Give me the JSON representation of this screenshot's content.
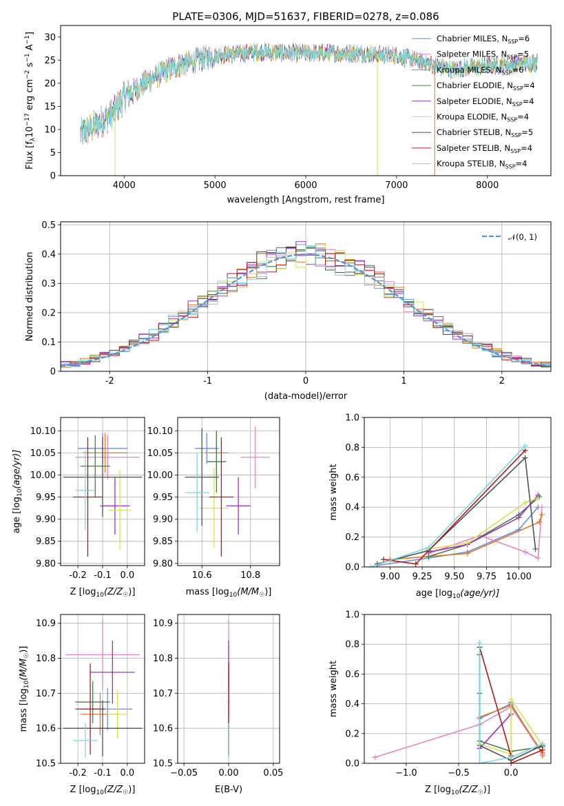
{
  "figure": {
    "title": "PLATE=0306, MJD=51637, FIBERID=0278, z=0.086"
  },
  "colors": {
    "Chabrier MILES": "#6a8ee0",
    "Salpeter MILES": "#e088c2",
    "Kroupa MILES": "#e07a22",
    "Chabrier ELODIE": "#4a7a4a",
    "Salpeter ELODIE": "#9a30b8",
    "Kroupa ELODIE": "#d2e25a",
    "Chabrier STELIB": "#505050",
    "Salpeter STELIB": "#b01818",
    "Kroupa STELIB": "#7ad6e0",
    "gaussian": "#5b8fd8"
  },
  "legend": {
    "items": [
      {
        "name": "Chabrier MILES",
        "n": "6"
      },
      {
        "name": "Salpeter MILES",
        "n": "5"
      },
      {
        "name": "Kroupa MILES",
        "n": "6"
      },
      {
        "name": "Chabrier ELODIE",
        "n": "4"
      },
      {
        "name": "Salpeter ELODIE",
        "n": "4"
      },
      {
        "name": "Kroupa ELODIE",
        "n": "4"
      },
      {
        "name": "Chabrier STELIB",
        "n": "5"
      },
      {
        "name": "Salpeter STELIB",
        "n": "4"
      },
      {
        "name": "Kroupa STELIB",
        "n": "4"
      }
    ],
    "nssp_prefix": "N",
    "nssp_sub": "SSP",
    "placement": "top-right"
  },
  "chart_data": [
    {
      "id": "spectrum",
      "type": "line",
      "xlabel": "wavelength [Angstrom, rest frame]",
      "ylabel_main": "Flux [f",
      "ylabel_sub": "λ",
      "ylabel_rest": "10",
      "ylabel_sup1": "−17",
      "ylabel_mid": " erg cm",
      "ylabel_sup2": "−2",
      "ylabel_mid2": " s",
      "ylabel_sup3": "−1",
      "ylabel_mid3": " A",
      "ylabel_sup4": "−1",
      "ylabel_end": "]",
      "xlim": [
        3300,
        8700
      ],
      "ylim": [
        0,
        32.5
      ],
      "xticks": [
        4000,
        5000,
        6000,
        7000,
        8000
      ],
      "yticks": [
        0,
        5,
        10,
        15,
        20,
        25,
        30
      ],
      "continuum": [
        [
          3520,
          9
        ],
        [
          3700,
          11
        ],
        [
          3900,
          14
        ],
        [
          4000,
          17
        ],
        [
          4300,
          21
        ],
        [
          4600,
          24
        ],
        [
          5000,
          26
        ],
        [
          5500,
          26.8
        ],
        [
          6000,
          26.5
        ],
        [
          6500,
          26.5
        ],
        [
          7000,
          26
        ],
        [
          7300,
          24.5
        ],
        [
          7600,
          23
        ],
        [
          8000,
          23.8
        ],
        [
          8400,
          24.2
        ],
        [
          8550,
          24.5
        ]
      ],
      "dropouts": [
        {
          "series": "Kroupa ELODIE",
          "x": 3900
        },
        {
          "series": "Kroupa ELODIE",
          "x": 6790
        },
        {
          "series": "Kroupa MILES",
          "x": 7420
        }
      ]
    },
    {
      "id": "residuals",
      "type": "histogram",
      "xlabel": "(data-model)/error",
      "ylabel": "Normed distribution",
      "xlim": [
        -2.5,
        2.5
      ],
      "ylim": [
        0,
        0.51
      ],
      "xticks": [
        -2,
        -1,
        0,
        1,
        2
      ],
      "yticks": [
        0,
        0.1,
        0.2,
        0.3,
        0.4,
        0.5
      ],
      "bin_width": 0.1,
      "gaussian_label": "𝒩(0, 1)",
      "gaussian": {
        "mean": 0,
        "sigma": 1
      },
      "grid": true
    },
    {
      "id": "age-vs-z",
      "type": "errorbar",
      "xlabel_main": "Z [log",
      "xlabel_sub": "10",
      "xlabel_end": "(Z/Z",
      "xlabel_sun": "☉",
      "xlabel_close": ")]",
      "ylabel_main": "age  [log",
      "ylabel_sub": "10",
      "ylabel_end": "(age/yr)]",
      "xlim": [
        -0.27,
        0.07
      ],
      "ylim": [
        9.795,
        10.13
      ],
      "xticks": [
        "-0.2",
        "-0.1",
        "0.0"
      ],
      "yticks": [
        "9.80",
        "9.85",
        "9.90",
        "9.95",
        "10.00",
        "10.05",
        "10.10"
      ],
      "points": [
        {
          "series": "Chabrier MILES",
          "x": -0.1,
          "xerr": 0.1,
          "y": 10.06,
          "yerr": 0.035
        },
        {
          "series": "Salpeter MILES",
          "x": -0.08,
          "xerr": 0.13,
          "y": 10.04,
          "yerr": 0.05
        },
        {
          "series": "Kroupa MILES",
          "x": -0.09,
          "xerr": 0.09,
          "y": 10.05,
          "yerr": 0.045
        },
        {
          "series": "Chabrier ELODIE",
          "x": -0.13,
          "xerr": 0.06,
          "y": 10.02,
          "yerr": 0.07
        },
        {
          "series": "Salpeter ELODIE",
          "x": -0.05,
          "xerr": 0.06,
          "y": 9.93,
          "yerr": 0.065
        },
        {
          "series": "Kroupa ELODIE",
          "x": -0.03,
          "xerr": 0.045,
          "y": 9.92,
          "yerr": 0.09
        },
        {
          "series": "Chabrier STELIB",
          "x": -0.1,
          "xerr": 0.16,
          "y": 9.995,
          "yerr": 0.09
        },
        {
          "series": "Salpeter STELIB",
          "x": -0.16,
          "xerr": 0.06,
          "y": 9.95,
          "yerr": 0.135
        },
        {
          "series": "Kroupa STELIB",
          "x": -0.17,
          "xerr": 0.04,
          "y": 9.965,
          "yerr": 0.09
        }
      ]
    },
    {
      "id": "age-vs-mass",
      "type": "errorbar",
      "xlabel_main": "mass [log",
      "xlabel_sub": "10",
      "xlabel_end": "(M/M",
      "xlabel_sun": "☉",
      "xlabel_close": ")]",
      "xlim": [
        10.5,
        10.92
      ],
      "ylim": [
        9.795,
        10.13
      ],
      "xticks": [
        "10.6",
        "10.8"
      ],
      "yticks": [
        "9.80",
        "9.85",
        "9.90",
        "9.95",
        "10.00",
        "10.05",
        "10.10"
      ],
      "points": [
        {
          "series": "Chabrier MILES",
          "x": 10.62,
          "xerr": 0.05,
          "y": 10.06,
          "yerr": 0.035
        },
        {
          "series": "Salpeter MILES",
          "x": 10.82,
          "xerr": 0.06,
          "y": 10.04,
          "yerr": 0.07
        },
        {
          "series": "Kroupa MILES",
          "x": 10.66,
          "xerr": 0.05,
          "y": 10.05,
          "yerr": 0.045
        },
        {
          "series": "Chabrier ELODIE",
          "x": 10.66,
          "xerr": 0.04,
          "y": 10.03,
          "yerr": 0.07
        },
        {
          "series": "Salpeter ELODIE",
          "x": 10.75,
          "xerr": 0.05,
          "y": 9.93,
          "yerr": 0.065
        },
        {
          "series": "Kroupa ELODIE",
          "x": 10.65,
          "xerr": 0.06,
          "y": 9.925,
          "yerr": 0.09
        },
        {
          "series": "Chabrier STELIB",
          "x": 10.6,
          "xerr": 0.07,
          "y": 9.995,
          "yerr": 0.11
        },
        {
          "series": "Salpeter STELIB",
          "x": 10.68,
          "xerr": 0.05,
          "y": 9.95,
          "yerr": 0.135
        },
        {
          "series": "Kroupa STELIB",
          "x": 10.58,
          "xerr": 0.05,
          "y": 9.96,
          "yerr": 0.09
        }
      ]
    },
    {
      "id": "weight-vs-age",
      "type": "line",
      "xlabel_main": "age  [log",
      "xlabel_sub": "10",
      "xlabel_end": "(age/yr)]",
      "ylabel": "mass weight",
      "xlim": [
        8.8,
        10.25
      ],
      "ylim": [
        0,
        1.0
      ],
      "xticks": [
        "9.00",
        "9.25",
        "9.50",
        "9.75",
        "10.00"
      ],
      "yticks": [
        "0.0",
        "0.2",
        "0.4",
        "0.6",
        "0.8",
        "1.0"
      ],
      "series": [
        {
          "name": "Chabrier MILES",
          "x": [
            8.9,
            9.3,
            9.6,
            10.0,
            10.15
          ],
          "y": [
            0.01,
            0.06,
            0.1,
            0.25,
            0.4
          ]
        },
        {
          "name": "Salpeter MILES",
          "x": [
            9.3,
            9.7,
            10.05,
            10.15,
            10.18
          ],
          "y": [
            0.09,
            0.21,
            0.1,
            0.06,
            0.4
          ]
        },
        {
          "name": "Kroupa MILES",
          "x": [
            9.0,
            9.3,
            9.6,
            10.16,
            10.18
          ],
          "y": [
            0.05,
            0.07,
            0.09,
            0.3,
            0.35
          ]
        },
        {
          "name": "Chabrier ELODIE",
          "x": [
            9.3,
            9.6,
            10.0,
            10.16
          ],
          "y": [
            0.07,
            0.15,
            0.35,
            0.47
          ]
        },
        {
          "name": "Salpeter ELODIE",
          "x": [
            9.3,
            9.6,
            10.0,
            10.15
          ],
          "y": [
            0.1,
            0.15,
            0.33,
            0.48
          ]
        },
        {
          "name": "Kroupa ELODIE",
          "x": [
            9.3,
            9.6,
            10.05,
            10.15
          ],
          "y": [
            0.12,
            0.16,
            0.43,
            0.46
          ]
        },
        {
          "name": "Chabrier STELIB",
          "x": [
            8.9,
            9.3,
            10.05,
            10.13
          ],
          "y": [
            0.02,
            0.11,
            0.73,
            0.12
          ]
        },
        {
          "name": "Salpeter STELIB",
          "x": [
            8.95,
            9.2,
            10.05
          ],
          "y": [
            0.05,
            0.02,
            0.78
          ]
        },
        {
          "name": "Kroupa STELIB",
          "x": [
            8.85,
            9.3,
            10.05
          ],
          "y": [
            0.0,
            0.13,
            0.81
          ]
        }
      ]
    },
    {
      "id": "mass-vs-z",
      "type": "errorbar",
      "xlabel_main": "Z [log",
      "xlabel_sub": "10",
      "xlabel_end": "(Z/Z",
      "xlabel_sun": "☉",
      "xlabel_close": ")]",
      "ylabel_main": "mass [log",
      "ylabel_sub": "10",
      "ylabel_end": "(M/M",
      "ylabel_sun": "☉",
      "ylabel_close": ")]",
      "xlim": [
        -0.27,
        0.07
      ],
      "ylim": [
        10.5,
        10.925
      ],
      "xticks": [
        "-0.2",
        "-0.1",
        "0.0"
      ],
      "yticks": [
        "10.5",
        "10.6",
        "10.7",
        "10.8",
        "10.9"
      ],
      "points": [
        {
          "series": "Chabrier MILES",
          "x": -0.08,
          "xerr": 0.1,
          "y": 10.655,
          "yerr": 0.06
        },
        {
          "series": "Salpeter MILES",
          "x": -0.1,
          "xerr": 0.15,
          "y": 10.81,
          "yerr": 0.1
        },
        {
          "series": "Kroupa MILES",
          "x": -0.11,
          "xerr": 0.08,
          "y": 10.64,
          "yerr": 0.06
        },
        {
          "series": "Chabrier ELODIE",
          "x": -0.14,
          "xerr": 0.07,
          "y": 10.675,
          "yerr": 0.06
        },
        {
          "series": "Salpeter ELODIE",
          "x": -0.06,
          "xerr": 0.09,
          "y": 10.76,
          "yerr": 0.09
        },
        {
          "series": "Kroupa ELODIE",
          "x": -0.04,
          "xerr": 0.04,
          "y": 10.64,
          "yerr": 0.07
        },
        {
          "series": "Chabrier STELIB",
          "x": -0.1,
          "xerr": 0.16,
          "y": 10.6,
          "yerr": 0.08
        },
        {
          "series": "Salpeter STELIB",
          "x": -0.15,
          "xerr": 0.06,
          "y": 10.655,
          "yerr": 0.13
        },
        {
          "series": "Kroupa STELIB",
          "x": -0.17,
          "xerr": 0.05,
          "y": 10.565,
          "yerr": 0.05
        }
      ]
    },
    {
      "id": "mass-vs-ebv",
      "type": "errorbar",
      "xlabel": "E(B-V)",
      "xlim": [
        -0.057,
        0.057
      ],
      "ylim": [
        10.5,
        10.925
      ],
      "xticks": [
        "−0.05",
        "0.00",
        "0.05"
      ],
      "yticks": [
        "10.5",
        "10.6",
        "10.7",
        "10.8",
        "10.9"
      ],
      "points": [
        {
          "series": "Salpeter MILES",
          "x": 0.0,
          "xerr": 0.0,
          "y": 10.81,
          "yerr": 0.1
        },
        {
          "series": "Salpeter ELODIE",
          "x": 0.0,
          "xerr": 0.0,
          "y": 10.76,
          "yerr": 0.09
        },
        {
          "series": "Chabrier STELIB",
          "x": 0.0,
          "xerr": 0.0,
          "y": 10.6,
          "yerr": 0.08
        },
        {
          "series": "Salpeter STELIB",
          "x": 0.0,
          "xerr": 0.0,
          "y": 10.655,
          "yerr": 0.13
        },
        {
          "series": "Kroupa STELIB",
          "x": 0.0,
          "xerr": 0.0,
          "y": 10.565,
          "yerr": 0.05
        }
      ]
    },
    {
      "id": "weight-vs-z",
      "type": "line",
      "xlabel_main": "Z [log",
      "xlabel_sub": "10",
      "xlabel_end": "(Z/Z",
      "xlabel_sun": "☉",
      "xlabel_close": ")]",
      "ylabel": "mass weight",
      "xlim": [
        -1.4,
        0.38
      ],
      "ylim": [
        0,
        1.0
      ],
      "xticks": [
        "−1.0",
        "−0.5",
        "0.0"
      ],
      "xtick_values": [
        -1.0,
        -0.5,
        0.0
      ],
      "yticks": [
        "0.0",
        "0.2",
        "0.4",
        "0.6",
        "0.8",
        "1.0"
      ],
      "series": [
        {
          "name": "Chabrier MILES",
          "x": [
            -0.3,
            0.0,
            0.3,
            0.3
          ],
          "y": [
            0.3,
            0.4,
            0.06,
            0.13
          ]
        },
        {
          "name": "Salpeter MILES",
          "x": [
            -1.3,
            -0.3,
            0.0,
            0.3
          ],
          "y": [
            0.04,
            0.26,
            0.38,
            0.06
          ]
        },
        {
          "name": "Kroupa MILES",
          "x": [
            -0.3,
            0.0,
            0.3,
            0.3
          ],
          "y": [
            0.31,
            0.39,
            0.07,
            0.05
          ]
        },
        {
          "name": "Chabrier ELODIE",
          "x": [
            -0.3,
            -0.3,
            0.0,
            0.3
          ],
          "y": [
            0.47,
            0.15,
            0.08,
            0.11
          ]
        },
        {
          "name": "Salpeter ELODIE",
          "x": [
            -0.3,
            0.0,
            0.0
          ],
          "y": [
            0.1,
            0.33,
            0.41
          ]
        },
        {
          "name": "Kroupa ELODIE",
          "x": [
            -0.3,
            0.0,
            0.0,
            0.3
          ],
          "y": [
            0.13,
            0.06,
            0.43,
            0.12
          ]
        },
        {
          "name": "Chabrier STELIB",
          "x": [
            -0.3,
            -0.3,
            0.0,
            0.3
          ],
          "y": [
            0.73,
            0.12,
            0.02,
            0.12
          ]
        },
        {
          "name": "Salpeter STELIB",
          "x": [
            -0.3,
            0.0,
            0.0,
            0.3
          ],
          "y": [
            0.78,
            0.05,
            0.0,
            0.09
          ]
        },
        {
          "name": "Kroupa STELIB",
          "x": [
            -0.3,
            -0.3,
            0.0,
            0.3
          ],
          "y": [
            0.81,
            0.0,
            0.04,
            0.13
          ]
        }
      ]
    }
  ]
}
